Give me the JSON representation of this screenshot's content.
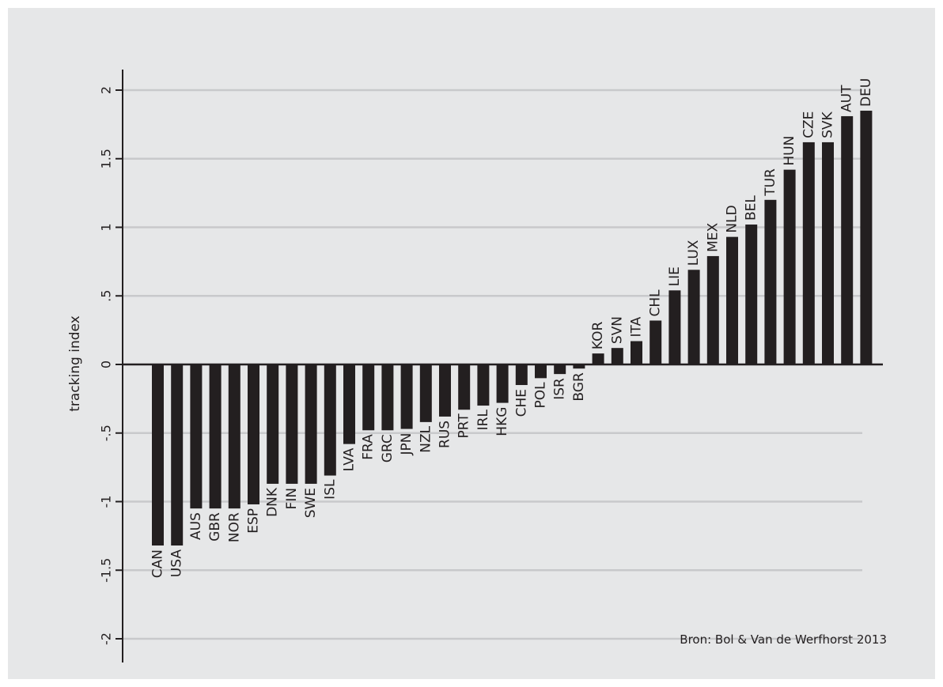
{
  "chart_data": {
    "type": "bar",
    "ylabel": "tracking index",
    "source": "Bron: Bol & Van de Werfhorst 2013",
    "ylim": [
      -2,
      2
    ],
    "yticks": [
      2,
      1.5,
      1,
      0.5,
      0,
      -0.5,
      -1,
      -1.5,
      -2
    ],
    "ytick_labels": [
      "2",
      "1.5",
      "1",
      ".5",
      "0",
      "-.5",
      "-1",
      "-1.5",
      "-2"
    ],
    "grid": true,
    "bar_color": "#231f20",
    "background_color": "#e6e7e8",
    "grid_color": "#c8c9cb",
    "categories": [
      "CAN",
      "USA",
      "AUS",
      "GBR",
      "NOR",
      "ESP",
      "DNK",
      "FIN",
      "SWE",
      "ISL",
      "LVA",
      "FRA",
      "GRC",
      "JPN",
      "NZL",
      "RUS",
      "PRT",
      "IRL",
      "HKG",
      "CHE",
      "POL",
      "ISR",
      "BGR",
      "KOR",
      "SVN",
      "ITA",
      "CHL",
      "LIE",
      "LUX",
      "MEX",
      "NLD",
      "BEL",
      "TUR",
      "HUN",
      "CZE",
      "SVK",
      "AUT",
      "DEU"
    ],
    "values": [
      -1.32,
      -1.32,
      -1.05,
      -1.05,
      -1.05,
      -1.02,
      -0.87,
      -0.87,
      -0.87,
      -0.81,
      -0.58,
      -0.48,
      -0.48,
      -0.47,
      -0.42,
      -0.38,
      -0.33,
      -0.3,
      -0.28,
      -0.15,
      -0.1,
      -0.07,
      -0.03,
      0.08,
      0.12,
      0.17,
      0.32,
      0.54,
      0.69,
      0.79,
      0.93,
      1.02,
      1.2,
      1.42,
      1.62,
      1.62,
      1.81,
      1.85
    ]
  }
}
